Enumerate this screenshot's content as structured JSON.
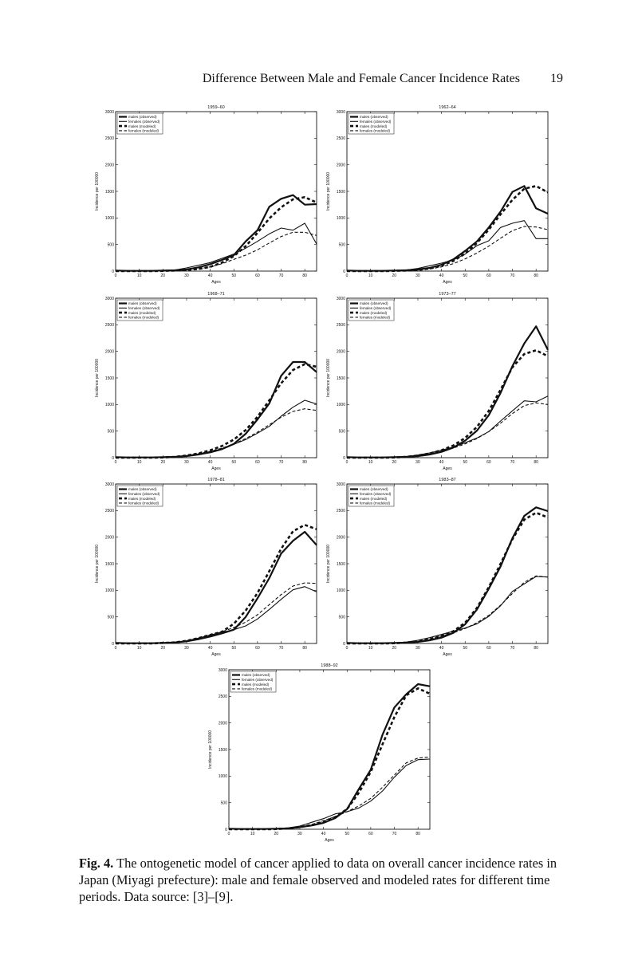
{
  "header": {
    "title": "Difference Between Male and Female Cancer Incidence Rates",
    "page_number": "19"
  },
  "caption": {
    "label": "Fig. 4.",
    "text": "The ontogenetic model of cancer applied to data on overall cancer incidence rates in Japan (Miyagi prefecture): male and female observed and modeled rates for different time periods. Data source: [3]–[9]."
  },
  "chart_data": [
    {
      "type": "line",
      "title": "1959–60",
      "xlabel": "Ages",
      "ylabel": "Incidence per 100000",
      "xlim": [
        0,
        85
      ],
      "ylim": [
        0,
        3000
      ],
      "xticks": [
        0,
        10,
        20,
        30,
        40,
        50,
        60,
        70,
        80
      ],
      "yticks": [
        0,
        500,
        1000,
        1500,
        2000,
        2500,
        3000
      ],
      "x": [
        0,
        5,
        10,
        15,
        20,
        25,
        30,
        35,
        40,
        45,
        50,
        55,
        60,
        65,
        70,
        75,
        80,
        85
      ],
      "legend": "top-left",
      "series": [
        {
          "name": "males (observed)",
          "values": [
            10,
            5,
            5,
            5,
            10,
            15,
            30,
            70,
            130,
            210,
            300,
            560,
            770,
            1210,
            1360,
            1430,
            1250,
            1260
          ]
        },
        {
          "name": "females (observed)",
          "values": [
            10,
            5,
            5,
            5,
            10,
            20,
            60,
            110,
            160,
            240,
            320,
            430,
            560,
            700,
            810,
            770,
            900,
            510
          ]
        },
        {
          "name": "males (modeled)",
          "values": [
            0,
            0,
            0,
            0,
            5,
            10,
            20,
            40,
            80,
            160,
            280,
            470,
            720,
            990,
            1200,
            1350,
            1390,
            1290
          ]
        },
        {
          "name": "females (modeled)",
          "values": [
            0,
            0,
            0,
            0,
            5,
            10,
            20,
            40,
            80,
            140,
            220,
            300,
            400,
            530,
            650,
            730,
            730,
            670
          ]
        }
      ]
    },
    {
      "type": "line",
      "title": "1962–64",
      "xlabel": "Ages",
      "ylabel": "Incidence per 100000",
      "xlim": [
        0,
        85
      ],
      "ylim": [
        0,
        3000
      ],
      "xticks": [
        0,
        10,
        20,
        30,
        40,
        50,
        60,
        70,
        80
      ],
      "yticks": [
        0,
        500,
        1000,
        1500,
        2000,
        2500,
        3000
      ],
      "x": [
        0,
        5,
        10,
        15,
        20,
        25,
        30,
        35,
        40,
        45,
        50,
        55,
        60,
        65,
        70,
        75,
        80,
        85
      ],
      "legend": "top-left",
      "series": [
        {
          "name": "males (observed)",
          "values": [
            10,
            5,
            5,
            5,
            10,
            15,
            30,
            60,
            120,
            220,
            380,
            560,
            820,
            1120,
            1490,
            1600,
            1180,
            1080
          ]
        },
        {
          "name": "females (observed)",
          "values": [
            10,
            5,
            5,
            5,
            10,
            20,
            50,
            100,
            150,
            210,
            320,
            480,
            570,
            820,
            900,
            950,
            610,
            610
          ]
        },
        {
          "name": "males (modeled)",
          "values": [
            0,
            0,
            0,
            0,
            5,
            10,
            20,
            50,
            100,
            190,
            330,
            530,
            780,
            1070,
            1340,
            1550,
            1600,
            1480
          ]
        },
        {
          "name": "females (modeled)",
          "values": [
            0,
            0,
            0,
            0,
            5,
            10,
            20,
            40,
            80,
            140,
            230,
            340,
            470,
            620,
            760,
            840,
            830,
            780
          ]
        }
      ]
    },
    {
      "type": "line",
      "title": "1968–71",
      "xlabel": "Ages",
      "ylabel": "Incidence per 100000",
      "xlim": [
        0,
        85
      ],
      "ylim": [
        0,
        3000
      ],
      "xticks": [
        0,
        10,
        20,
        30,
        40,
        50,
        60,
        70,
        80
      ],
      "yticks": [
        0,
        500,
        1000,
        1500,
        2000,
        2500,
        3000
      ],
      "x": [
        0,
        5,
        10,
        15,
        20,
        25,
        30,
        35,
        40,
        45,
        50,
        55,
        60,
        65,
        70,
        75,
        80,
        85
      ],
      "legend": "top-left",
      "series": [
        {
          "name": "males (observed)",
          "values": [
            10,
            5,
            5,
            5,
            10,
            15,
            30,
            60,
            100,
            160,
            260,
            450,
            720,
            1020,
            1540,
            1800,
            1800,
            1610
          ]
        },
        {
          "name": "females (observed)",
          "values": [
            10,
            5,
            5,
            5,
            10,
            20,
            40,
            70,
            110,
            170,
            250,
            340,
            460,
            590,
            780,
            950,
            1080,
            1010
          ]
        },
        {
          "name": "males (modeled)",
          "values": [
            0,
            0,
            0,
            0,
            5,
            15,
            40,
            80,
            140,
            220,
            340,
            520,
            770,
            1080,
            1400,
            1650,
            1760,
            1710
          ]
        },
        {
          "name": "females (modeled)",
          "values": [
            0,
            0,
            0,
            0,
            5,
            15,
            40,
            80,
            120,
            180,
            260,
            360,
            480,
            620,
            760,
            870,
            920,
            890
          ]
        }
      ]
    },
    {
      "type": "line",
      "title": "1973–77",
      "xlabel": "Ages",
      "ylabel": "Incidence per 100000",
      "xlim": [
        0,
        85
      ],
      "ylim": [
        0,
        3000
      ],
      "xticks": [
        0,
        10,
        20,
        30,
        40,
        50,
        60,
        70,
        80
      ],
      "yticks": [
        0,
        500,
        1000,
        1500,
        2000,
        2500,
        3000
      ],
      "x": [
        0,
        5,
        10,
        15,
        20,
        25,
        30,
        35,
        40,
        45,
        50,
        55,
        60,
        65,
        70,
        75,
        80,
        85
      ],
      "legend": "top-left",
      "series": [
        {
          "name": "males (observed)",
          "values": [
            10,
            5,
            5,
            5,
            10,
            15,
            30,
            60,
            110,
            190,
            320,
            510,
            800,
            1220,
            1720,
            2150,
            2470,
            2030
          ]
        },
        {
          "name": "females (observed)",
          "values": [
            10,
            5,
            5,
            5,
            10,
            20,
            50,
            90,
            140,
            200,
            280,
            370,
            490,
            690,
            880,
            1070,
            1050,
            1160
          ]
        },
        {
          "name": "males (modeled)",
          "values": [
            0,
            0,
            0,
            0,
            5,
            15,
            40,
            80,
            140,
            230,
            370,
            580,
            880,
            1280,
            1700,
            1950,
            2020,
            1910
          ]
        },
        {
          "name": "females (modeled)",
          "values": [
            0,
            0,
            0,
            0,
            5,
            15,
            35,
            70,
            120,
            180,
            260,
            360,
            490,
            650,
            830,
            980,
            1030,
            1000
          ]
        }
      ]
    },
    {
      "type": "line",
      "title": "1978–81",
      "xlabel": "Ages",
      "ylabel": "Incidence per 100000",
      "xlim": [
        0,
        85
      ],
      "ylim": [
        0,
        3000
      ],
      "xticks": [
        0,
        10,
        20,
        30,
        40,
        50,
        60,
        70,
        80
      ],
      "yticks": [
        0,
        500,
        1000,
        1500,
        2000,
        2500,
        3000
      ],
      "x": [
        0,
        5,
        10,
        15,
        20,
        25,
        30,
        35,
        40,
        45,
        50,
        55,
        60,
        65,
        70,
        75,
        80,
        85
      ],
      "legend": "top-left",
      "series": [
        {
          "name": "males (observed)",
          "values": [
            10,
            5,
            5,
            5,
            10,
            20,
            40,
            80,
            130,
            190,
            260,
            500,
            850,
            1230,
            1690,
            1930,
            2100,
            1850
          ]
        },
        {
          "name": "females (observed)",
          "values": [
            10,
            5,
            5,
            5,
            10,
            20,
            50,
            100,
            160,
            210,
            260,
            330,
            460,
            640,
            830,
            1010,
            1070,
            970
          ]
        },
        {
          "name": "males (modeled)",
          "values": [
            0,
            0,
            0,
            0,
            10,
            20,
            50,
            100,
            160,
            220,
            370,
            620,
            950,
            1360,
            1780,
            2110,
            2230,
            2150
          ]
        },
        {
          "name": "females (modeled)",
          "values": [
            0,
            0,
            0,
            0,
            10,
            20,
            50,
            90,
            150,
            220,
            300,
            400,
            540,
            730,
            920,
            1080,
            1140,
            1130
          ]
        }
      ]
    },
    {
      "type": "line",
      "title": "1983–87",
      "xlabel": "Ages",
      "ylabel": "Incidence per 100000",
      "xlim": [
        0,
        85
      ],
      "ylim": [
        0,
        3000
      ],
      "xticks": [
        0,
        10,
        20,
        30,
        40,
        50,
        60,
        70,
        80
      ],
      "yticks": [
        0,
        500,
        1000,
        1500,
        2000,
        2500,
        3000
      ],
      "x": [
        0,
        5,
        10,
        15,
        20,
        25,
        30,
        35,
        40,
        45,
        50,
        55,
        60,
        65,
        70,
        75,
        80,
        85
      ],
      "legend": "top-left",
      "series": [
        {
          "name": "males (observed)",
          "values": [
            10,
            5,
            5,
            5,
            10,
            15,
            30,
            60,
            110,
            200,
            360,
            640,
            1030,
            1450,
            1980,
            2400,
            2560,
            2490
          ]
        },
        {
          "name": "females (observed)",
          "values": [
            10,
            5,
            5,
            5,
            10,
            25,
            60,
            110,
            170,
            230,
            290,
            370,
            510,
            710,
            980,
            1120,
            1260,
            1250
          ]
        },
        {
          "name": "males (modeled)",
          "values": [
            0,
            0,
            0,
            0,
            5,
            15,
            40,
            80,
            140,
            230,
            390,
            670,
            1060,
            1500,
            1960,
            2330,
            2460,
            2370
          ]
        },
        {
          "name": "females (modeled)",
          "values": [
            0,
            0,
            0,
            0,
            5,
            15,
            40,
            80,
            140,
            200,
            280,
            390,
            530,
            720,
            940,
            1150,
            1270,
            1250
          ]
        }
      ]
    },
    {
      "type": "line",
      "title": "1988–92",
      "xlabel": "Ages",
      "ylabel": "Incidence per 100000",
      "xlim": [
        0,
        85
      ],
      "ylim": [
        0,
        3000
      ],
      "xticks": [
        0,
        10,
        20,
        30,
        40,
        50,
        60,
        70,
        80
      ],
      "yticks": [
        0,
        500,
        1000,
        1500,
        2000,
        2500,
        3000
      ],
      "x": [
        0,
        5,
        10,
        15,
        20,
        25,
        30,
        35,
        40,
        45,
        50,
        55,
        60,
        65,
        70,
        75,
        80,
        85
      ],
      "legend": "top-left",
      "series": [
        {
          "name": "males (observed)",
          "values": [
            10,
            5,
            5,
            5,
            10,
            15,
            40,
            70,
            120,
            210,
            380,
            760,
            1120,
            1780,
            2290,
            2540,
            2730,
            2690
          ]
        },
        {
          "name": "females (observed)",
          "values": [
            10,
            5,
            5,
            5,
            10,
            25,
            60,
            130,
            200,
            290,
            330,
            400,
            530,
            720,
            980,
            1200,
            1310,
            1320
          ]
        },
        {
          "name": "males (modeled)",
          "values": [
            0,
            0,
            0,
            0,
            5,
            15,
            40,
            80,
            140,
            230,
            380,
            690,
            1080,
            1600,
            2110,
            2520,
            2650,
            2550
          ]
        },
        {
          "name": "females (modeled)",
          "values": [
            0,
            0,
            0,
            0,
            5,
            15,
            40,
            90,
            160,
            240,
            330,
            440,
            580,
            790,
            1020,
            1250,
            1340,
            1360
          ]
        }
      ]
    }
  ]
}
